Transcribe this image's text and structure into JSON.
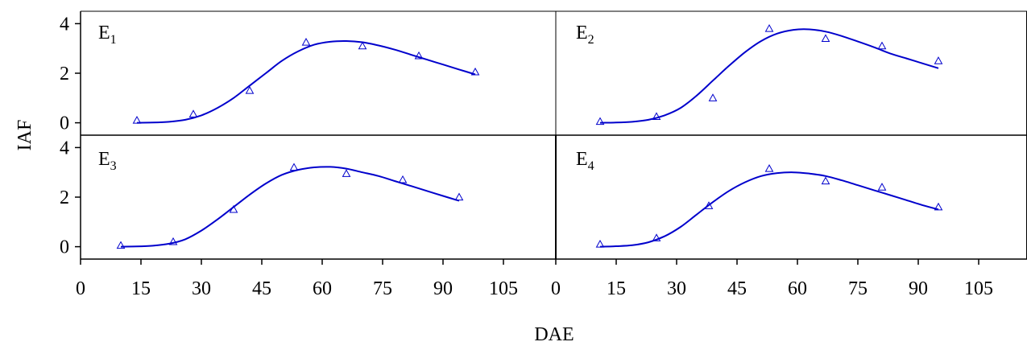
{
  "chart_data": {
    "type": "scatter",
    "xlabel": "DAE",
    "ylabel": "IAF",
    "xlim": [
      0,
      120
    ],
    "ylim": [
      -0.5,
      4.5
    ],
    "xticks": [
      0,
      15,
      30,
      45,
      60,
      75,
      90,
      105
    ],
    "yticks": [
      0,
      2,
      4
    ],
    "marker_color": "#0000cc",
    "line_color": "#0000cc",
    "panels": [
      {
        "label_main": "E",
        "label_sub": "1",
        "observed": {
          "x": [
            14,
            28,
            42,
            56,
            70,
            84,
            98
          ],
          "y": [
            0.1,
            0.35,
            1.3,
            3.25,
            3.1,
            2.7,
            2.05
          ]
        },
        "fitted": {
          "x": [
            14,
            18,
            22,
            26,
            30,
            34,
            38,
            42,
            46,
            50,
            54,
            58,
            62,
            66,
            70,
            74,
            78,
            82,
            86,
            90,
            94,
            98
          ],
          "y": [
            0.0,
            0.01,
            0.04,
            0.12,
            0.3,
            0.6,
            1.0,
            1.5,
            2.0,
            2.5,
            2.88,
            3.15,
            3.27,
            3.3,
            3.25,
            3.12,
            2.95,
            2.75,
            2.55,
            2.35,
            2.15,
            1.95
          ]
        }
      },
      {
        "label_main": "E",
        "label_sub": "2",
        "observed": {
          "x": [
            11,
            25,
            39,
            53,
            67,
            81,
            95
          ],
          "y": [
            0.05,
            0.25,
            1.0,
            3.8,
            3.4,
            3.1,
            2.5
          ]
        },
        "fitted": {
          "x": [
            11,
            15,
            19,
            23,
            27,
            31,
            35,
            39,
            43,
            47,
            51,
            55,
            59,
            63,
            67,
            71,
            75,
            79,
            83,
            87,
            91,
            95
          ],
          "y": [
            0.0,
            0.01,
            0.04,
            0.12,
            0.3,
            0.6,
            1.1,
            1.7,
            2.3,
            2.85,
            3.3,
            3.6,
            3.75,
            3.77,
            3.68,
            3.5,
            3.28,
            3.05,
            2.8,
            2.6,
            2.4,
            2.2
          ]
        }
      },
      {
        "label_main": "E",
        "label_sub": "3",
        "observed": {
          "x": [
            10,
            23,
            38,
            53,
            66,
            80,
            94
          ],
          "y": [
            0.05,
            0.2,
            1.5,
            3.2,
            2.95,
            2.7,
            2.0
          ]
        },
        "fitted": {
          "x": [
            10,
            14,
            18,
            22,
            26,
            30,
            34,
            38,
            42,
            46,
            50,
            54,
            58,
            62,
            66,
            70,
            74,
            78,
            82,
            86,
            90,
            94
          ],
          "y": [
            0.0,
            0.01,
            0.04,
            0.12,
            0.3,
            0.65,
            1.1,
            1.6,
            2.1,
            2.55,
            2.9,
            3.1,
            3.2,
            3.22,
            3.15,
            3.0,
            2.85,
            2.65,
            2.45,
            2.25,
            2.05,
            1.85
          ]
        }
      },
      {
        "label_main": "E",
        "label_sub": "4",
        "observed": {
          "x": [
            11,
            25,
            38,
            53,
            67,
            81,
            95
          ],
          "y": [
            0.1,
            0.35,
            1.65,
            3.15,
            2.65,
            2.4,
            1.6
          ]
        },
        "fitted": {
          "x": [
            11,
            15,
            19,
            23,
            27,
            31,
            35,
            39,
            43,
            47,
            51,
            55,
            59,
            63,
            67,
            71,
            75,
            79,
            83,
            87,
            91,
            95
          ],
          "y": [
            0.0,
            0.02,
            0.06,
            0.18,
            0.42,
            0.8,
            1.3,
            1.8,
            2.25,
            2.6,
            2.85,
            2.97,
            3.0,
            2.95,
            2.85,
            2.68,
            2.48,
            2.28,
            2.08,
            1.88,
            1.68,
            1.5
          ]
        }
      }
    ]
  }
}
